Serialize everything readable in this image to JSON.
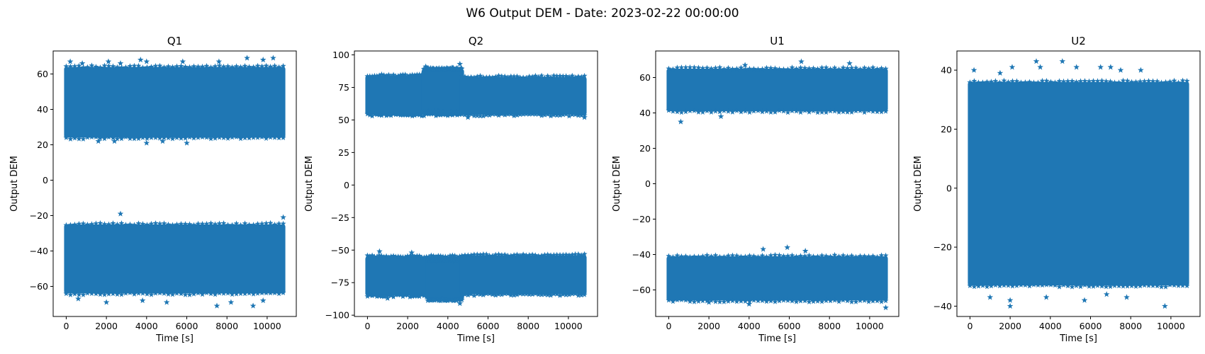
{
  "figure": {
    "title": "W6 Output DEM - Date: 2023-02-22 00:00:00",
    "marker_color": "#1f77b4",
    "marker": "star"
  },
  "chart_data": [
    {
      "type": "scatter",
      "title": "Q1",
      "xlabel": "Time [s]",
      "ylabel": "Output DEM",
      "xlim": [
        -650,
        11450
      ],
      "ylim": [
        -77,
        73
      ],
      "xticks": [
        0,
        2000,
        4000,
        6000,
        8000,
        10000
      ],
      "yticks": [
        -60,
        -40,
        -20,
        0,
        20,
        40,
        60
      ],
      "x_range": [
        0,
        10800
      ],
      "bands": [
        {
          "name": "upper",
          "x": [
            0,
            10800
          ],
          "y_min": 24,
          "y_max": 64
        },
        {
          "name": "lower",
          "x": [
            0,
            10800
          ],
          "y_min": -64,
          "y_max": -25
        }
      ],
      "outliers": [
        [
          200,
          67
        ],
        [
          800,
          66
        ],
        [
          2100,
          67
        ],
        [
          2700,
          66
        ],
        [
          3700,
          68
        ],
        [
          4000,
          67
        ],
        [
          5800,
          67
        ],
        [
          7600,
          67
        ],
        [
          9000,
          69
        ],
        [
          9800,
          68
        ],
        [
          10300,
          69
        ],
        [
          1600,
          22
        ],
        [
          2400,
          22
        ],
        [
          4000,
          21
        ],
        [
          4800,
          22
        ],
        [
          6000,
          21
        ],
        [
          2700,
          -19
        ],
        [
          10800,
          -21
        ],
        [
          2000,
          -69
        ],
        [
          3800,
          -68
        ],
        [
          5000,
          -69
        ],
        [
          7500,
          -71
        ],
        [
          8200,
          -69
        ],
        [
          9300,
          -71
        ],
        [
          9800,
          -68
        ],
        [
          600,
          -67
        ]
      ],
      "outlier_range": [
        -73,
        71
      ]
    },
    {
      "type": "scatter",
      "title": "Q2",
      "xlabel": "Time [s]",
      "ylabel": "Output DEM",
      "xlim": [
        -650,
        11450
      ],
      "ylim": [
        -101,
        103
      ],
      "xticks": [
        0,
        2000,
        4000,
        6000,
        8000,
        10000
      ],
      "yticks": [
        -100,
        -75,
        -50,
        -25,
        0,
        25,
        50,
        75,
        100
      ],
      "x_range": [
        0,
        10800
      ],
      "bands": [
        {
          "name": "upper-before",
          "x": [
            0,
            4700
          ],
          "y_min": 54,
          "y_max": 84
        },
        {
          "name": "upper-step",
          "x": [
            2800,
            4700
          ],
          "y_min": 56,
          "y_max": 89
        },
        {
          "name": "upper-after",
          "x": [
            4700,
            10800
          ],
          "y_min": 54,
          "y_max": 83
        },
        {
          "name": "lower-before",
          "x": [
            0,
            4700
          ],
          "y_min": -85,
          "y_max": -55
        },
        {
          "name": "lower-step",
          "x": [
            3000,
            4700
          ],
          "y_min": -88,
          "y_max": -58
        },
        {
          "name": "lower-after",
          "x": [
            4700,
            10800
          ],
          "y_min": -84,
          "y_max": -54
        }
      ],
      "outliers": [
        [
          2900,
          91
        ],
        [
          4600,
          93
        ],
        [
          3300,
          89
        ],
        [
          4200,
          90
        ],
        [
          5000,
          52
        ],
        [
          10800,
          52
        ],
        [
          600,
          -51
        ],
        [
          2200,
          -52
        ],
        [
          4600,
          -91
        ],
        [
          1000,
          -87
        ]
      ],
      "outlier_range": [
        -98,
        100
      ]
    },
    {
      "type": "scatter",
      "title": "U1",
      "xlabel": "Time [s]",
      "ylabel": "Output DEM",
      "xlim": [
        -650,
        11450
      ],
      "ylim": [
        -75,
        75
      ],
      "xticks": [
        0,
        2000,
        4000,
        6000,
        8000,
        10000
      ],
      "yticks": [
        -60,
        -40,
        -20,
        0,
        20,
        40,
        60
      ],
      "x_range": [
        0,
        10800
      ],
      "bands": [
        {
          "name": "upper",
          "x": [
            0,
            10800
          ],
          "y_min": 41,
          "y_max": 65
        },
        {
          "name": "lower",
          "x": [
            0,
            10800
          ],
          "y_min": -66,
          "y_max": -41
        }
      ],
      "outliers": [
        [
          600,
          35
        ],
        [
          6600,
          69
        ],
        [
          9000,
          68
        ],
        [
          3800,
          67
        ],
        [
          2600,
          38
        ],
        [
          4700,
          -37
        ],
        [
          5900,
          -36
        ],
        [
          6800,
          -38
        ],
        [
          10800,
          -70
        ],
        [
          2000,
          -67
        ],
        [
          4000,
          -68
        ]
      ],
      "outlier_range": [
        -71,
        71
      ]
    },
    {
      "type": "scatter",
      "title": "U2",
      "xlabel": "Time [s]",
      "ylabel": "Output DEM",
      "xlim": [
        -650,
        11450
      ],
      "ylim": [
        -43.5,
        46.5
      ],
      "xticks": [
        0,
        2000,
        4000,
        6000,
        8000,
        10000
      ],
      "yticks": [
        -40,
        -20,
        0,
        20,
        40
      ],
      "x_range": [
        0,
        10800
      ],
      "bands": [
        {
          "name": "full",
          "x": [
            0,
            10800
          ],
          "y_min": -33,
          "y_max": 36
        }
      ],
      "outliers": [
        [
          200,
          40
        ],
        [
          1500,
          39
        ],
        [
          2100,
          41
        ],
        [
          3300,
          43
        ],
        [
          3500,
          41
        ],
        [
          4600,
          43
        ],
        [
          5300,
          41
        ],
        [
          6500,
          41
        ],
        [
          7000,
          41
        ],
        [
          7500,
          40
        ],
        [
          8500,
          40
        ],
        [
          2000,
          -40
        ],
        [
          2000,
          -38
        ],
        [
          3800,
          -37
        ],
        [
          5700,
          -38
        ],
        [
          7800,
          -37
        ],
        [
          9700,
          -40
        ],
        [
          1000,
          -37
        ],
        [
          6800,
          -36
        ]
      ],
      "outlier_range": [
        -41,
        44
      ]
    }
  ]
}
